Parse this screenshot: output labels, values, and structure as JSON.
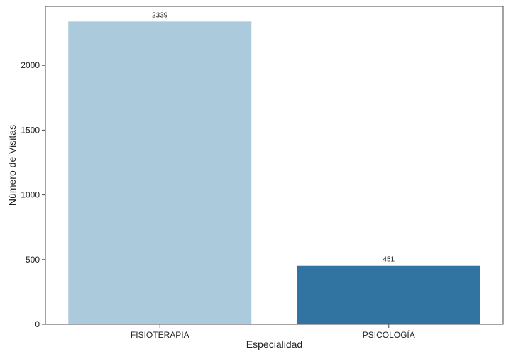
{
  "chart_data": {
    "type": "bar",
    "categories": [
      "FISIOTERAPIA",
      "PSICOLOGÍA"
    ],
    "values": [
      2339,
      451
    ],
    "data_labels": [
      "2339",
      "451"
    ],
    "colors": [
      "#abcbdc",
      "#3274a1"
    ],
    "title": "",
    "xlabel": "Especialidad",
    "ylabel": "Número de Visitas",
    "ylim": [
      0,
      2456
    ],
    "yticks": [
      0,
      500,
      1000,
      1500,
      2000
    ],
    "ytick_labels": [
      "0",
      "500",
      "1000",
      "1500",
      "2000"
    ],
    "grid": false,
    "legend": "none"
  }
}
